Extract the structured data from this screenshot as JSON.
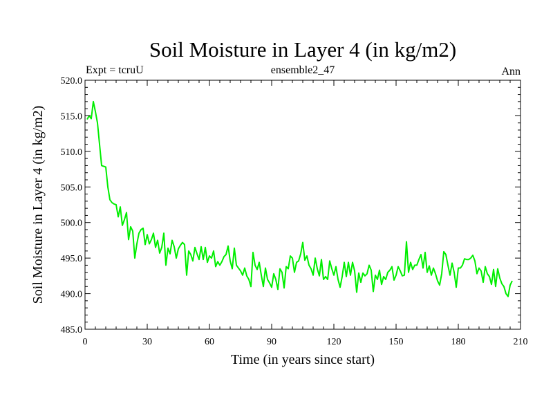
{
  "chart_data": {
    "type": "line",
    "title": "Soil Moisture in Layer 4 (in kg/m2)",
    "subtitle_left": "Expt = tcruU",
    "subtitle_center": "ensemble2_47",
    "subtitle_right": "Ann",
    "xlabel": "Time (in years since start)",
    "ylabel": "Soil Moisture in Layer 4 (in kg/m2)",
    "xlim": [
      0,
      210
    ],
    "ylim": [
      485,
      520
    ],
    "x_ticks": [
      0,
      30,
      60,
      90,
      120,
      150,
      180,
      210
    ],
    "x_tick_labels": [
      "0",
      "30",
      "60",
      "90",
      "120",
      "150",
      "180",
      "210"
    ],
    "y_ticks": [
      485,
      490,
      495,
      500,
      505,
      510,
      515,
      520
    ],
    "y_tick_labels": [
      "485.0",
      "490.0",
      "495.0",
      "500.0",
      "505.0",
      "510.0",
      "515.0",
      "520.0"
    ],
    "line_color": "#00ee00",
    "series": [
      {
        "name": "ensemble2_47",
        "x_start": 1,
        "x_step": 1,
        "values": [
          514.5,
          515.0,
          514.6,
          517.0,
          515.6,
          514.0,
          511.0,
          508.0,
          507.9,
          507.8,
          505.0,
          503.2,
          502.8,
          502.6,
          502.5,
          500.8,
          502.2,
          499.6,
          500.4,
          501.4,
          497.6,
          499.4,
          498.8,
          495.0,
          497.0,
          498.5,
          499.0,
          499.2,
          496.9,
          498.3,
          497.0,
          497.6,
          498.5,
          496.5,
          497.5,
          495.7,
          496.5,
          498.5,
          494.0,
          496.4,
          495.6,
          497.5,
          496.6,
          495.0,
          496.3,
          496.8,
          497.2,
          496.9,
          492.6,
          496.0,
          495.5,
          494.6,
          496.5,
          495.6,
          494.8,
          496.6,
          494.8,
          496.5,
          494.4,
          495.3,
          495.0,
          496.0,
          493.8,
          494.5,
          494.0,
          494.5,
          495.2,
          495.5,
          496.7,
          494.6,
          493.5,
          496.4,
          494.0,
          493.6,
          493.2,
          492.6,
          493.6,
          492.5,
          492.0,
          491.0,
          495.8,
          494.0,
          493.4,
          494.4,
          492.6,
          491.0,
          493.6,
          492.0,
          491.5,
          490.9,
          492.8,
          492.0,
          490.6,
          493.5,
          493.0,
          490.8,
          493.8,
          493.5,
          495.3,
          495.0,
          493.0,
          494.4,
          494.6,
          495.6,
          497.2,
          494.7,
          495.3,
          494.0,
          493.5,
          492.6,
          495.0,
          493.5,
          492.5,
          494.8,
          492.0,
          492.4,
          492.0,
          494.6,
          493.5,
          492.6,
          493.8,
          492.0,
          490.9,
          492.4,
          494.4,
          492.4,
          494.4,
          492.6,
          494.4,
          493.2,
          490.2,
          492.9,
          491.6,
          492.9,
          492.5,
          492.8,
          494.0,
          493.3,
          490.3,
          492.6,
          492.0,
          493.3,
          491.3,
          492.4,
          492.0,
          493.0,
          493.3,
          493.8,
          491.9,
          492.6,
          493.8,
          493.2,
          492.5,
          492.6,
          497.3,
          493.0,
          494.4,
          493.4,
          494.0,
          494.0,
          494.8,
          495.5,
          493.6,
          495.8,
          493.0,
          493.9,
          492.6,
          493.6,
          492.8,
          491.8,
          491.2,
          492.8,
          495.9,
          495.5,
          494.0,
          492.6,
          494.3,
          493.0,
          490.9,
          493.6,
          493.6,
          494.0,
          494.9,
          494.8,
          494.8,
          495.0,
          495.4,
          494.6,
          492.8,
          493.6,
          493.2,
          491.6,
          493.8,
          492.8,
          492.4,
          491.3,
          493.4,
          491.0,
          493.5,
          492.2,
          491.4,
          491.0,
          490.0,
          489.6,
          491.2,
          491.8
        ]
      }
    ]
  }
}
